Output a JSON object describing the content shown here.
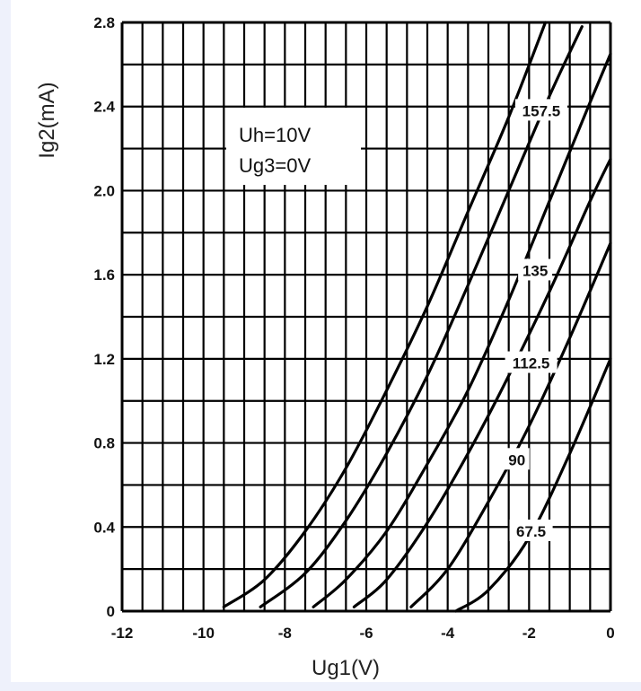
{
  "chart_data": {
    "type": "line",
    "title": "",
    "xlabel": "Ug1(V)",
    "ylabel": "Ig2(mA)",
    "xlim": [
      -12,
      0
    ],
    "ylim": [
      0,
      2.8
    ],
    "x_tick_labels": [
      "-12",
      "-10",
      "-8",
      "-6",
      "-4",
      "-2",
      "0"
    ],
    "y_tick_labels": [
      "0",
      "0.4",
      "0.8",
      "1.2",
      "1.6",
      "2.0",
      "2.4",
      "2.8"
    ],
    "annotations": [
      "Uh=10V",
      "Ug3=0V"
    ],
    "grid": true,
    "legend": "none",
    "series": [
      {
        "name": "",
        "x": [
          -9.5,
          -8.5,
          -7.5,
          -6.5,
          -5.5,
          -4.5,
          -3.5,
          -2.5,
          -1.6
        ],
        "y": [
          0.02,
          0.15,
          0.38,
          0.68,
          1.05,
          1.45,
          1.9,
          2.35,
          2.8
        ]
      },
      {
        "name": "157.5",
        "x": [
          -8.6,
          -7.5,
          -6.5,
          -5.5,
          -4.5,
          -3.5,
          -2.5,
          -1.5,
          -0.7
        ],
        "y": [
          0.02,
          0.18,
          0.43,
          0.75,
          1.12,
          1.55,
          2.0,
          2.45,
          2.78
        ]
      },
      {
        "name": "135",
        "x": [
          -7.3,
          -6.5,
          -5.5,
          -4.5,
          -3.5,
          -2.5,
          -1.5,
          -0.5,
          0
        ],
        "y": [
          0.02,
          0.15,
          0.38,
          0.7,
          1.05,
          1.48,
          1.95,
          2.42,
          2.65
        ]
      },
      {
        "name": "112.5",
        "x": [
          -6.3,
          -5.5,
          -4.5,
          -3.5,
          -2.5,
          -1.5,
          -0.5,
          0
        ],
        "y": [
          0.02,
          0.15,
          0.42,
          0.75,
          1.12,
          1.52,
          1.95,
          2.15
        ]
      },
      {
        "name": "90",
        "x": [
          -4.9,
          -4.0,
          -3.0,
          -2.0,
          -1.0,
          0
        ],
        "y": [
          0.02,
          0.2,
          0.52,
          0.88,
          1.3,
          1.75
        ]
      },
      {
        "name": "67.5",
        "x": [
          -3.8,
          -3.0,
          -2.0,
          -1.0,
          0
        ],
        "y": [
          0.0,
          0.1,
          0.35,
          0.75,
          1.2
        ]
      }
    ]
  }
}
